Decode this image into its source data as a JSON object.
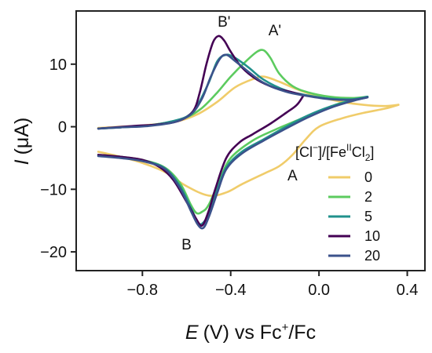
{
  "chart_data": {
    "type": "line",
    "title": "",
    "xlabel": {
      "var": "E",
      "unit": "(V) vs Fc",
      "sup": "+",
      "rest": "/Fc"
    },
    "ylabel": {
      "var": "I",
      "unit": "(μA)"
    },
    "xlim": [
      -1.1,
      0.48
    ],
    "ylim": [
      -23,
      18.5
    ],
    "xticks": [
      -0.8,
      -0.4,
      0.0,
      0.4
    ],
    "xtick_labels": [
      "−0.8",
      "−0.4",
      "0.0",
      "0.4"
    ],
    "yticks": [
      -20,
      -10,
      0,
      10
    ],
    "ytick_labels": [
      "−20",
      "−10",
      "0",
      "10"
    ],
    "grid": false,
    "legend": {
      "placement": "right",
      "title": {
        "a": "[Cl",
        "a_sup": "−",
        "b": "]/[Fe",
        "b_sup": "II",
        "c": "Cl",
        "c_sub": "2",
        "d": "]"
      }
    },
    "annotations": [
      {
        "text": "B'",
        "x": -0.43,
        "y": 16.0
      },
      {
        "text": "A'",
        "x": -0.2,
        "y": 14.6
      },
      {
        "text": "A",
        "x": -0.12,
        "y": -8.6
      },
      {
        "text": "B",
        "x": -0.6,
        "y": -19.6
      }
    ],
    "series": [
      {
        "name": "0",
        "color": "#F0CC6A",
        "forward": [
          [
            -1.0,
            -4.0
          ],
          [
            -0.9,
            -4.8
          ],
          [
            -0.8,
            -5.8
          ],
          [
            -0.7,
            -7.2
          ],
          [
            -0.6,
            -9.5
          ],
          [
            -0.5,
            -11.0
          ],
          [
            -0.42,
            -10.5
          ],
          [
            -0.35,
            -9.2
          ],
          [
            -0.25,
            -7.5
          ],
          [
            -0.18,
            -6.3
          ],
          [
            -0.12,
            -4.5
          ],
          [
            -0.06,
            -2.0
          ],
          [
            0.0,
            0.0
          ],
          [
            0.1,
            1.3
          ],
          [
            0.2,
            2.2
          ],
          [
            0.3,
            2.9
          ],
          [
            0.36,
            3.5
          ]
        ],
        "reverse": [
          [
            0.36,
            3.5
          ],
          [
            0.3,
            3.3
          ],
          [
            0.2,
            3.5
          ],
          [
            0.1,
            4.0
          ],
          [
            0.0,
            4.8
          ],
          [
            -0.1,
            6.0
          ],
          [
            -0.18,
            7.2
          ],
          [
            -0.25,
            8.0
          ],
          [
            -0.3,
            7.6
          ],
          [
            -0.38,
            6.3
          ],
          [
            -0.46,
            4.0
          ],
          [
            -0.55,
            2.0
          ],
          [
            -0.65,
            0.8
          ],
          [
            -0.8,
            0.2
          ],
          [
            -0.9,
            0.0
          ],
          [
            -1.0,
            -0.2
          ]
        ]
      },
      {
        "name": "2",
        "color": "#5CCB5F",
        "forward": [
          [
            -1.0,
            -4.5
          ],
          [
            -0.9,
            -4.8
          ],
          [
            -0.8,
            -5.3
          ],
          [
            -0.7,
            -6.5
          ],
          [
            -0.63,
            -9.0
          ],
          [
            -0.58,
            -12.5
          ],
          [
            -0.555,
            -13.8
          ],
          [
            -0.53,
            -13.6
          ],
          [
            -0.5,
            -12.5
          ],
          [
            -0.45,
            -8.5
          ],
          [
            -0.4,
            -5.0
          ],
          [
            -0.3,
            -2.2
          ],
          [
            -0.2,
            -0.5
          ],
          [
            -0.1,
            1.0
          ],
          [
            0.0,
            2.5
          ],
          [
            0.1,
            3.8
          ],
          [
            0.2,
            4.6
          ],
          [
            0.22,
            4.8
          ]
        ],
        "reverse": [
          [
            0.22,
            4.8
          ],
          [
            0.15,
            4.6
          ],
          [
            0.05,
            4.8
          ],
          [
            -0.05,
            5.5
          ],
          [
            -0.12,
            6.5
          ],
          [
            -0.18,
            8.5
          ],
          [
            -0.22,
            11.0
          ],
          [
            -0.25,
            12.2
          ],
          [
            -0.28,
            12.0
          ],
          [
            -0.33,
            10.5
          ],
          [
            -0.4,
            8.0
          ],
          [
            -0.46,
            5.5
          ],
          [
            -0.53,
            3.0
          ],
          [
            -0.6,
            1.5
          ],
          [
            -0.7,
            0.6
          ],
          [
            -0.8,
            0.1
          ],
          [
            -0.9,
            -0.1
          ],
          [
            -1.0,
            -0.3
          ]
        ]
      },
      {
        "name": "5",
        "color": "#21918C",
        "forward": [
          [
            -1.0,
            -4.6
          ],
          [
            -0.9,
            -4.9
          ],
          [
            -0.8,
            -5.4
          ],
          [
            -0.7,
            -6.6
          ],
          [
            -0.63,
            -9.5
          ],
          [
            -0.58,
            -13.0
          ],
          [
            -0.55,
            -15.2
          ],
          [
            -0.53,
            -15.5
          ],
          [
            -0.5,
            -14.0
          ],
          [
            -0.46,
            -10.0
          ],
          [
            -0.42,
            -6.5
          ],
          [
            -0.35,
            -4.0
          ],
          [
            -0.25,
            -2.0
          ],
          [
            -0.15,
            0.0
          ],
          [
            -0.05,
            1.8
          ],
          [
            0.05,
            3.2
          ],
          [
            0.15,
            4.2
          ],
          [
            0.22,
            4.8
          ]
        ],
        "reverse": [
          [
            0.22,
            4.8
          ],
          [
            0.15,
            4.4
          ],
          [
            0.05,
            4.5
          ],
          [
            -0.05,
            5.0
          ],
          [
            -0.15,
            5.8
          ],
          [
            -0.25,
            7.5
          ],
          [
            -0.32,
            9.5
          ],
          [
            -0.38,
            11.0
          ],
          [
            -0.42,
            11.5
          ],
          [
            -0.46,
            10.5
          ],
          [
            -0.5,
            7.0
          ],
          [
            -0.55,
            3.5
          ],
          [
            -0.6,
            1.6
          ],
          [
            -0.7,
            0.6
          ],
          [
            -0.8,
            0.1
          ],
          [
            -0.9,
            -0.1
          ],
          [
            -1.0,
            -0.3
          ]
        ]
      },
      {
        "name": "10",
        "color": "#440154",
        "forward": [
          [
            -1.0,
            -4.5
          ],
          [
            -0.9,
            -4.8
          ],
          [
            -0.8,
            -5.3
          ],
          [
            -0.72,
            -6.5
          ],
          [
            -0.66,
            -8.5
          ],
          [
            -0.6,
            -12.0
          ],
          [
            -0.56,
            -14.5
          ],
          [
            -0.53,
            -15.8
          ],
          [
            -0.5,
            -13.5
          ],
          [
            -0.47,
            -10.0
          ],
          [
            -0.42,
            -5.0
          ],
          [
            -0.36,
            -2.5
          ],
          [
            -0.3,
            -1.2
          ],
          [
            -0.22,
            0.5
          ],
          [
            -0.15,
            2.2
          ],
          [
            -0.1,
            3.5
          ],
          [
            -0.07,
            5.0
          ]
        ],
        "reverse": [
          [
            -0.07,
            5.0
          ],
          [
            -0.12,
            5.5
          ],
          [
            -0.2,
            6.2
          ],
          [
            -0.28,
            7.5
          ],
          [
            -0.35,
            9.5
          ],
          [
            -0.4,
            12.0
          ],
          [
            -0.43,
            13.8
          ],
          [
            -0.455,
            14.5
          ],
          [
            -0.48,
            13.5
          ],
          [
            -0.51,
            10.0
          ],
          [
            -0.54,
            5.5
          ],
          [
            -0.57,
            2.5
          ],
          [
            -0.63,
            1.0
          ],
          [
            -0.72,
            0.4
          ],
          [
            -0.85,
            0.1
          ],
          [
            -1.0,
            -0.3
          ]
        ]
      },
      {
        "name": "20",
        "color": "#3B528B",
        "forward": [
          [
            -1.0,
            -4.7
          ],
          [
            -0.9,
            -5.0
          ],
          [
            -0.8,
            -5.5
          ],
          [
            -0.7,
            -6.7
          ],
          [
            -0.63,
            -9.8
          ],
          [
            -0.58,
            -13.5
          ],
          [
            -0.55,
            -15.6
          ],
          [
            -0.525,
            -16.2
          ],
          [
            -0.5,
            -14.5
          ],
          [
            -0.46,
            -10.5
          ],
          [
            -0.42,
            -6.8
          ],
          [
            -0.35,
            -4.3
          ],
          [
            -0.25,
            -2.2
          ],
          [
            -0.15,
            -0.3
          ],
          [
            -0.05,
            1.5
          ],
          [
            0.05,
            3.0
          ],
          [
            0.15,
            4.1
          ],
          [
            0.22,
            4.7
          ]
        ],
        "reverse": [
          [
            0.22,
            4.7
          ],
          [
            0.15,
            4.3
          ],
          [
            0.05,
            4.4
          ],
          [
            -0.05,
            4.9
          ],
          [
            -0.15,
            5.6
          ],
          [
            -0.25,
            7.0
          ],
          [
            -0.32,
            8.8
          ],
          [
            -0.38,
            10.5
          ],
          [
            -0.42,
            11.5
          ],
          [
            -0.45,
            10.8
          ],
          [
            -0.49,
            8.0
          ],
          [
            -0.53,
            4.5
          ],
          [
            -0.58,
            2.0
          ],
          [
            -0.66,
            0.7
          ],
          [
            -0.78,
            0.1
          ],
          [
            -0.9,
            -0.1
          ],
          [
            -1.0,
            -0.3
          ]
        ]
      }
    ]
  }
}
